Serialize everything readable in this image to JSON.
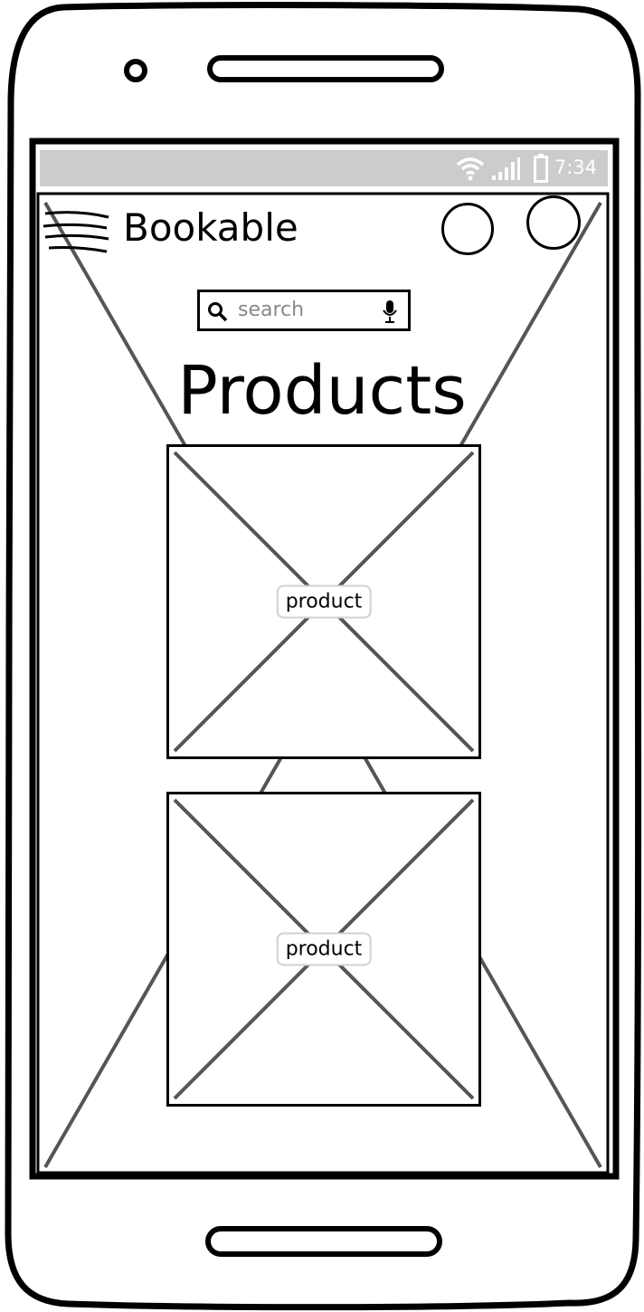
{
  "status_bar": {
    "time": "7:34",
    "icons": [
      "wifi-icon",
      "signal-icon",
      "battery-icon"
    ],
    "background": "#cccccc"
  },
  "header": {
    "app_title": "Bookable",
    "menu_icon": "hamburger-menu-icon",
    "action_buttons": [
      "circle-button",
      "circle-button"
    ]
  },
  "search": {
    "placeholder": "search",
    "icons": [
      "search-icon",
      "microphone-icon"
    ]
  },
  "main": {
    "title": "Products",
    "products": [
      {
        "label": "product"
      },
      {
        "label": "product"
      }
    ]
  },
  "colors": {
    "outline": "#000000",
    "placeholder_cross": "#555555"
  }
}
